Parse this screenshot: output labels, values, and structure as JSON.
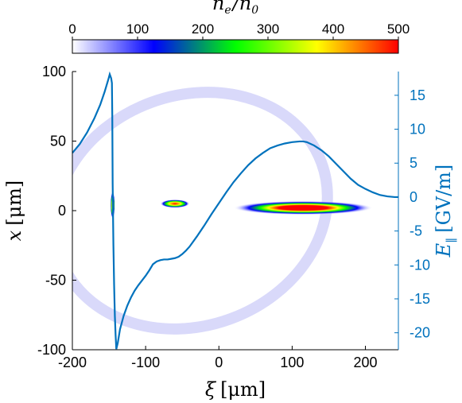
{
  "chart_data": {
    "type": "heatmap",
    "colorbar": {
      "label": "n_e / n_0",
      "label_main": "n",
      "label_sub1": "e",
      "label_sep": "/",
      "label_main2": "n",
      "label_sub2": "0",
      "ticks": [
        "0",
        "100",
        "200",
        "300",
        "400",
        "500"
      ],
      "range": [
        0,
        500
      ],
      "colors": [
        "#ffffff",
        "#0000ff",
        "#00ff00",
        "#ffff00",
        "#ff0000"
      ]
    },
    "xlabel": "ξ [μm]",
    "xlabel_sym": "ξ",
    "xlabel_unit": "[μm]",
    "ylabel_left": "x [μm]",
    "ylabel_left_sym": "x",
    "ylabel_left_unit": "[μm]",
    "ylabel_right": "E‖ [GV/m]",
    "ylabel_right_sym": "E",
    "ylabel_right_sub": "‖",
    "ylabel_right_unit": "[GV/m]",
    "xlim": [
      -200,
      245
    ],
    "ylim_left": [
      -100,
      100
    ],
    "ylim_right": [
      -22.5,
      18.5
    ],
    "x_ticks": [
      "-200",
      "-100",
      "0",
      "100",
      "200"
    ],
    "x_tick_values": [
      -200,
      -100,
      0,
      100,
      200
    ],
    "y_left_ticks": [
      "100",
      "50",
      "0",
      "-50",
      "-100"
    ],
    "y_left_tick_values": [
      100,
      50,
      0,
      -50,
      -100
    ],
    "y_right_ticks": [
      "15",
      "10",
      "5",
      "0",
      "-5",
      "-10",
      "-15",
      "-20"
    ],
    "y_right_tick_values": [
      15,
      10,
      5,
      0,
      -5,
      -10,
      -15,
      -20
    ],
    "series": [
      {
        "axis": "right",
        "color": "#0072BD",
        "x": [
          -200,
          -190,
          -180,
          -170,
          -162,
          -156,
          -151,
          -149,
          -147,
          -146,
          -145.5,
          -145,
          -144,
          -143,
          -142,
          -141,
          -140,
          -138,
          -135,
          -130,
          -125,
          -120,
          -115,
          -110,
          -105,
          -100,
          -95,
          -90,
          -85,
          -80,
          -75,
          -70,
          -65,
          -60,
          -55,
          -50,
          -45,
          -40,
          -30,
          -20,
          -10,
          0,
          10,
          20,
          30,
          40,
          50,
          60,
          70,
          80,
          90,
          100,
          110,
          115,
          120,
          130,
          140,
          150,
          160,
          170,
          180,
          190,
          200,
          210,
          220,
          230,
          240,
          245
        ],
        "y": [
          6.5,
          7.8,
          9.5,
          11.6,
          13.6,
          15.5,
          17.3,
          18.1,
          17.5,
          16.8,
          12,
          2,
          -7,
          -13,
          -17.5,
          -20.3,
          -22.4,
          -21.5,
          -19.5,
          -17.5,
          -16,
          -14.8,
          -13.8,
          -13,
          -12.3,
          -11.6,
          -10.8,
          -9.9,
          -9.5,
          -9.3,
          -9.2,
          -9.2,
          -9.1,
          -9,
          -8.8,
          -8.4,
          -7.9,
          -7.3,
          -5.8,
          -4.2,
          -2.5,
          -0.9,
          0.7,
          2.2,
          3.5,
          4.7,
          5.7,
          6.5,
          7.2,
          7.6,
          7.9,
          8.1,
          8.2,
          8.2,
          8.1,
          7.6,
          6.9,
          6,
          4.9,
          3.8,
          2.7,
          1.8,
          1.2,
          0.7,
          0.3,
          0.1,
          0,
          0
        ]
      }
    ],
    "density": [
      {
        "x": 115,
        "y": 2,
        "rx": 95,
        "ry": 5,
        "peak": 500
      },
      {
        "x": -60,
        "y": 5,
        "rx": 20,
        "ry": 3,
        "peak": 480
      },
      {
        "x": -145,
        "y": 4,
        "rx": 3,
        "ry": 10,
        "peak": 300
      }
    ],
    "grid": false
  }
}
